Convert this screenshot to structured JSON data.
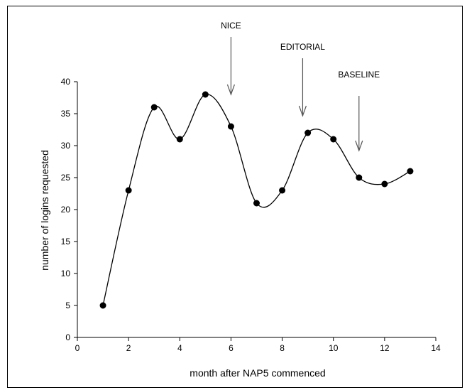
{
  "chart_data": {
    "type": "line",
    "title": "",
    "xlabel": "month after NAP5 commenced",
    "ylabel": "number of logins requested",
    "xlim": [
      0,
      14
    ],
    "ylim": [
      0,
      40
    ],
    "xticks": [
      0,
      2,
      4,
      6,
      8,
      10,
      12,
      14
    ],
    "yticks": [
      0,
      5,
      10,
      15,
      20,
      25,
      30,
      35,
      40
    ],
    "smoothed": true,
    "grid": false,
    "legend": "none",
    "colors": {
      "line": "#000000",
      "marker": "#000000",
      "annotation": "#555555"
    },
    "series": [
      {
        "x": [
          1,
          2,
          3,
          4,
          5,
          6,
          7,
          8,
          9,
          10,
          11,
          12,
          13
        ],
        "y": [
          5,
          23,
          36,
          31,
          38,
          33,
          21,
          23,
          32,
          31,
          25,
          24,
          26
        ]
      }
    ],
    "annotations": [
      {
        "label": "NICE",
        "x": 6
      },
      {
        "label": "EDITORIAL",
        "x": 8.8
      },
      {
        "label": "BASELINE",
        "x": 11
      }
    ]
  }
}
